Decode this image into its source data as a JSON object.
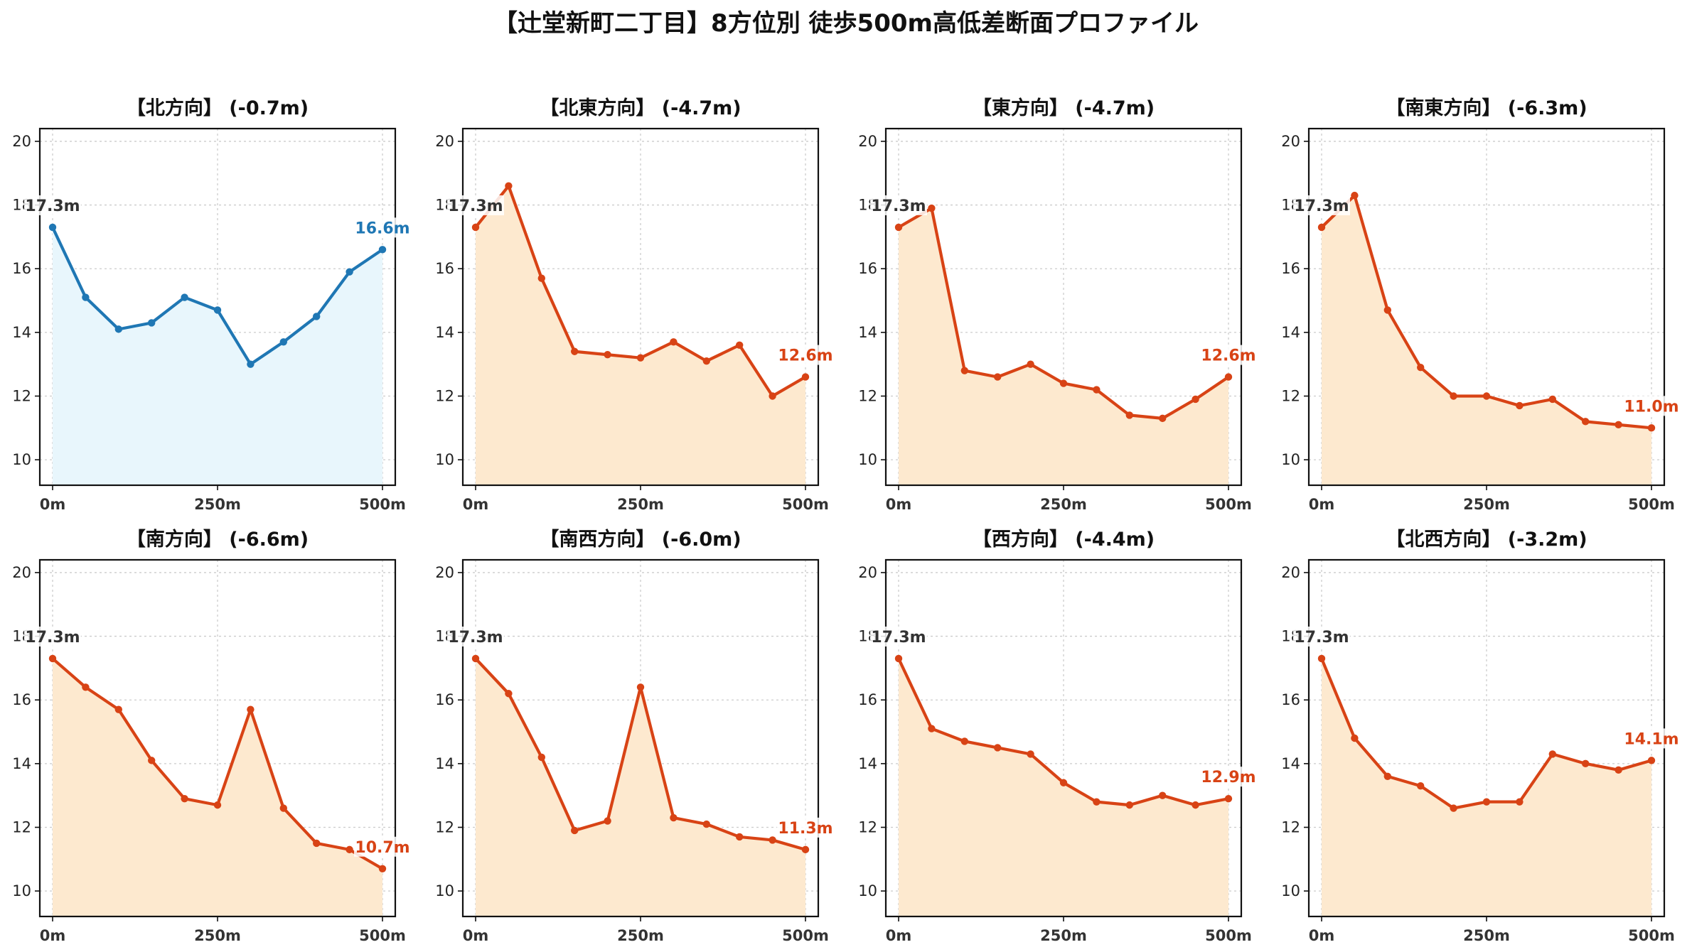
{
  "suptitle": "【辻堂新町二丁目】8方位別 徒歩500m高低差断面プロファイル",
  "colors": {
    "up_line": "#1f77b4",
    "up_fill": "#e8f6fc",
    "down_line": "#d84315",
    "down_fill": "#fde9cf",
    "start_label": "#333333"
  },
  "chart_data": [
    {
      "type": "area",
      "title": "【北方向】 (-0.7m)",
      "trend": "up",
      "x": [
        0,
        50,
        100,
        150,
        200,
        250,
        300,
        350,
        400,
        450,
        500
      ],
      "y": [
        17.3,
        15.1,
        14.1,
        14.3,
        15.1,
        14.7,
        13.0,
        13.7,
        14.5,
        15.9,
        16.6
      ],
      "start_label": "17.3m",
      "end_label": "16.6m",
      "xticks": [
        "0m",
        "250m",
        "500m"
      ],
      "yticks": [
        10,
        12,
        14,
        16,
        18,
        20
      ],
      "ylim": [
        9.2,
        20.4
      ],
      "grid": true
    },
    {
      "type": "area",
      "title": "【北東方向】 (-4.7m)",
      "trend": "down",
      "x": [
        0,
        50,
        100,
        150,
        200,
        250,
        300,
        350,
        400,
        450,
        500
      ],
      "y": [
        17.3,
        18.6,
        15.7,
        13.4,
        13.3,
        13.2,
        13.7,
        13.1,
        13.6,
        12.0,
        12.6
      ],
      "start_label": "17.3m",
      "end_label": "12.6m",
      "xticks": [
        "0m",
        "250m",
        "500m"
      ],
      "yticks": [
        10,
        12,
        14,
        16,
        18,
        20
      ],
      "ylim": [
        9.2,
        20.4
      ],
      "grid": true
    },
    {
      "type": "area",
      "title": "【東方向】 (-4.7m)",
      "trend": "down",
      "x": [
        0,
        50,
        100,
        150,
        200,
        250,
        300,
        350,
        400,
        450,
        500
      ],
      "y": [
        17.3,
        17.9,
        12.8,
        12.6,
        13.0,
        12.4,
        12.2,
        11.4,
        11.3,
        11.9,
        12.6
      ],
      "start_label": "17.3m",
      "end_label": "12.6m",
      "xticks": [
        "0m",
        "250m",
        "500m"
      ],
      "yticks": [
        10,
        12,
        14,
        16,
        18,
        20
      ],
      "ylim": [
        9.2,
        20.4
      ],
      "grid": true
    },
    {
      "type": "area",
      "title": "【南東方向】 (-6.3m)",
      "trend": "down",
      "x": [
        0,
        50,
        100,
        150,
        200,
        250,
        300,
        350,
        400,
        450,
        500
      ],
      "y": [
        17.3,
        18.3,
        14.7,
        12.9,
        12.0,
        12.0,
        11.7,
        11.9,
        11.2,
        11.1,
        11.0
      ],
      "start_label": "17.3m",
      "end_label": "11.0m",
      "xticks": [
        "0m",
        "250m",
        "500m"
      ],
      "yticks": [
        10,
        12,
        14,
        16,
        18,
        20
      ],
      "ylim": [
        9.2,
        20.4
      ],
      "grid": true
    },
    {
      "type": "area",
      "title": "【南方向】 (-6.6m)",
      "trend": "down",
      "x": [
        0,
        50,
        100,
        150,
        200,
        250,
        300,
        350,
        400,
        450,
        500
      ],
      "y": [
        17.3,
        16.4,
        15.7,
        14.1,
        12.9,
        12.7,
        15.7,
        12.6,
        11.5,
        11.3,
        10.7
      ],
      "start_label": "17.3m",
      "end_label": "10.7m",
      "xticks": [
        "0m",
        "250m",
        "500m"
      ],
      "yticks": [
        10,
        12,
        14,
        16,
        18,
        20
      ],
      "ylim": [
        9.2,
        20.4
      ],
      "grid": true
    },
    {
      "type": "area",
      "title": "【南西方向】 (-6.0m)",
      "trend": "down",
      "x": [
        0,
        50,
        100,
        150,
        200,
        250,
        300,
        350,
        400,
        450,
        500
      ],
      "y": [
        17.3,
        16.2,
        14.2,
        11.9,
        12.2,
        16.4,
        12.3,
        12.1,
        11.7,
        11.6,
        11.3
      ],
      "start_label": "17.3m",
      "end_label": "11.3m",
      "xticks": [
        "0m",
        "250m",
        "500m"
      ],
      "yticks": [
        10,
        12,
        14,
        16,
        18,
        20
      ],
      "ylim": [
        9.2,
        20.4
      ],
      "grid": true
    },
    {
      "type": "area",
      "title": "【西方向】 (-4.4m)",
      "trend": "down",
      "x": [
        0,
        50,
        100,
        150,
        200,
        250,
        300,
        350,
        400,
        450,
        500
      ],
      "y": [
        17.3,
        15.1,
        14.7,
        14.5,
        14.3,
        13.4,
        12.8,
        12.7,
        13.0,
        12.7,
        12.9
      ],
      "start_label": "17.3m",
      "end_label": "12.9m",
      "xticks": [
        "0m",
        "250m",
        "500m"
      ],
      "yticks": [
        10,
        12,
        14,
        16,
        18,
        20
      ],
      "ylim": [
        9.2,
        20.4
      ],
      "grid": true
    },
    {
      "type": "area",
      "title": "【北西方向】 (-3.2m)",
      "trend": "down",
      "x": [
        0,
        50,
        100,
        150,
        200,
        250,
        300,
        350,
        400,
        450,
        500
      ],
      "y": [
        17.3,
        14.8,
        13.6,
        13.3,
        12.6,
        12.8,
        12.8,
        14.3,
        14.0,
        13.8,
        14.1
      ],
      "start_label": "17.3m",
      "end_label": "14.1m",
      "xticks": [
        "0m",
        "250m",
        "500m"
      ],
      "yticks": [
        10,
        12,
        14,
        16,
        18,
        20
      ],
      "ylim": [
        9.2,
        20.4
      ],
      "grid": true
    }
  ]
}
